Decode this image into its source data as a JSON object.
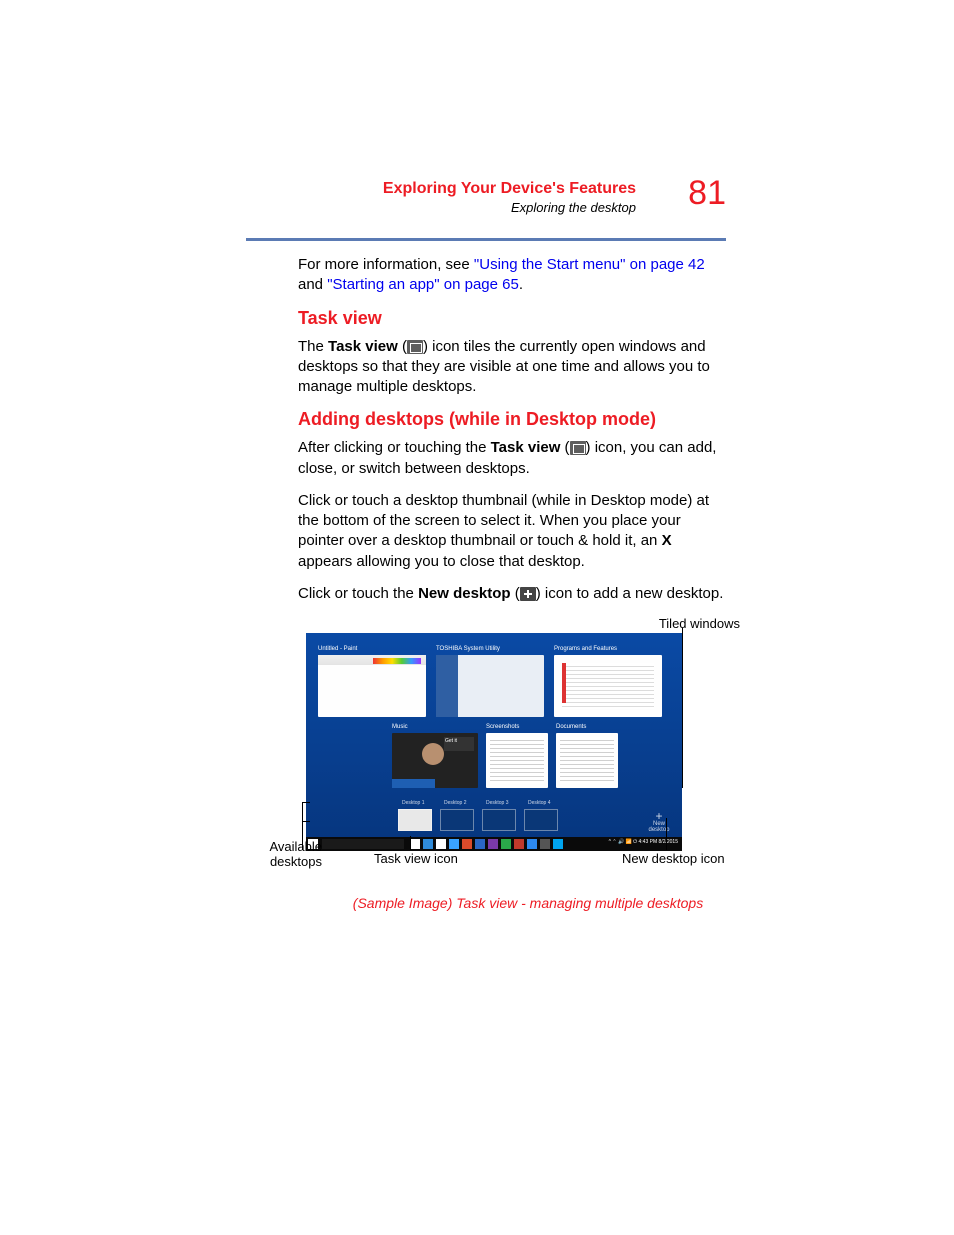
{
  "header": {
    "title": "Exploring Your Device's Features",
    "subtitle": "Exploring the desktop",
    "page_number": "81"
  },
  "colors": {
    "accent_red": "#ed1c24",
    "rule_blue": "#5b7bb4",
    "link_blue": "#0000ee",
    "body_text": "#000000",
    "shot_bg_top": "#0a4aa5",
    "shot_bg_bottom": "#06357d",
    "taskbar_bg": "#0a0a0a"
  },
  "intro": {
    "prefix": "For more information, see ",
    "link1": "\"Using the Start menu\" on page 42",
    "mid": " and ",
    "link2": "\"Starting an app\" on page 65",
    "suffix": "."
  },
  "section_taskview": {
    "heading": "Task view",
    "p1_a": "The ",
    "p1_b": "Task view",
    "p1_c": " (",
    "p1_d": ") icon tiles the currently open windows and desktops so that they are visible at one time and allows you to manage multiple desktops."
  },
  "section_adding": {
    "heading": "Adding desktops (while in Desktop mode)",
    "p1_a": "After clicking or touching the ",
    "p1_b": "Task view",
    "p1_c": " (",
    "p1_d": ") icon, you can add, close, or switch between desktops.",
    "p2_a": "Click or touch a desktop thumbnail (while in Desktop mode) at the bottom of the screen to select it. When you place your pointer over a desktop thumbnail or touch & hold it, an ",
    "p2_b": "X",
    "p2_c": " appears allowing you to close that desktop.",
    "p3_a": "Click or touch the ",
    "p3_b": "New desktop",
    "p3_c": " (",
    "p3_d": ") icon to add a new desktop."
  },
  "figure": {
    "label_tiled": "Tiled windows",
    "label_available": "Available desktops",
    "label_taskview": "Task view icon",
    "label_newdesk": "New desktop icon",
    "caption": "(Sample Image) Task view - managing multiple desktops",
    "tiles": {
      "t1": "Untitled - Paint",
      "t2": "TOSHIBA System Utility",
      "t3": "Programs and Features",
      "t4": "Music",
      "t5": "Screenshots",
      "t6": "Documents"
    },
    "desktops": [
      "Desktop 1",
      "Desktop 2",
      "Desktop 3",
      "Desktop 4"
    ],
    "new_desktop": {
      "plus": "+",
      "label": "New desktop"
    },
    "taskbar": {
      "tray": "^  ⌃  🔊  📶  ⏻   4:43 PM  8/2/2015",
      "icon_colors": [
        "#ffffff",
        "#2f8ad8",
        "#ffffff",
        "#3aa3ff",
        "#d94b2b",
        "#2a66c4",
        "#7a3aa8",
        "#2aa84a",
        "#c0392b",
        "#2d89ef",
        "#555555",
        "#00a4ef"
      ]
    }
  }
}
